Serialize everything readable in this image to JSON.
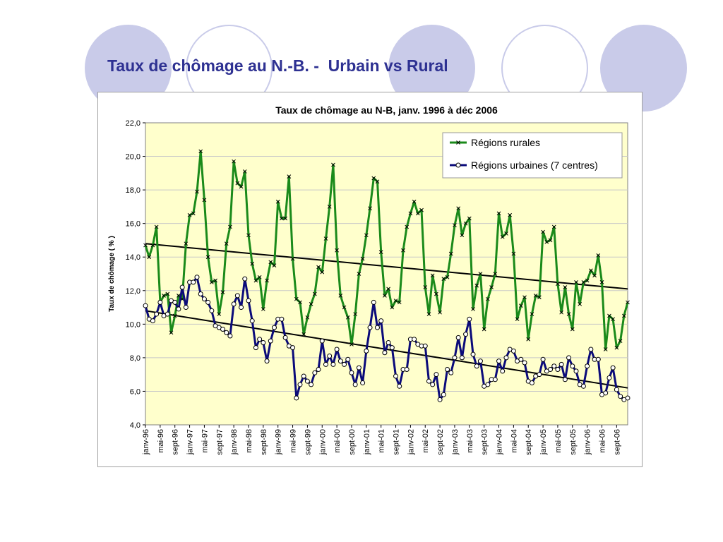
{
  "slide": {
    "title": "Taux de chômage au N.-B. -  Urbain vs Rural"
  },
  "theme": {
    "title_color": "#2e3192",
    "decor_color": "#c9cbe9",
    "plot_background": "#ffffcc",
    "rural_color": "#1a8a1a",
    "urban_color": "#0b0b7a",
    "trend_color": "#000000"
  },
  "chart_data": {
    "type": "line",
    "title": "Taux de chômage au N-B, janv. 1996 à déc 2006",
    "xlabel": "",
    "ylabel": "Taux de chômage ( % )",
    "ylim": [
      4.0,
      22.0
    ],
    "ytick_step": 2.0,
    "yticks": [
      "4,0",
      "6,0",
      "8,0",
      "10,0",
      "12,0",
      "14,0",
      "16,0",
      "18,0",
      "20,0",
      "22,0"
    ],
    "grid": true,
    "legend_position": "top-right",
    "x_tick_labels": [
      "janv-96",
      "mai-96",
      "sept-96",
      "janv-97",
      "mai-97",
      "sept-97",
      "janv-98",
      "mai-98",
      "sept-98",
      "janv-99",
      "mai-99",
      "sept-99",
      "janv-00",
      "mai-00",
      "sept-00",
      "janv-01",
      "mai-01",
      "sept-01",
      "janv-02",
      "mai-02",
      "sept-02",
      "janv-03",
      "mai-03",
      "sept-03",
      "janv-04",
      "mai-04",
      "sept-04",
      "janv-05",
      "mai-05",
      "sept-05",
      "janv-06",
      "mai-06",
      "sept-06"
    ],
    "x_start": "janv-96",
    "x_end": "déc-06",
    "series": [
      {
        "name": "Régions rurales",
        "color": "#1a8a1a",
        "marker": "x",
        "values": [
          14.7,
          14.0,
          14.7,
          15.8,
          11.3,
          11.7,
          11.8,
          9.5,
          10.5,
          11.7,
          11.5,
          14.8,
          16.5,
          16.6,
          17.9,
          20.3,
          17.4,
          14.0,
          12.5,
          12.6,
          10.6,
          11.9,
          14.8,
          15.8,
          19.7,
          18.4,
          18.2,
          19.1,
          15.3,
          13.6,
          12.6,
          12.8,
          10.9,
          12.6,
          13.7,
          13.5,
          17.3,
          16.3,
          16.3,
          18.8,
          13.9,
          11.5,
          11.3,
          9.4,
          10.4,
          11.2,
          11.8,
          13.4,
          13.1,
          15.1,
          17.0,
          19.5,
          14.4,
          11.7,
          11.0,
          10.4,
          8.8,
          10.6,
          13.0,
          13.9,
          15.3,
          16.9,
          18.7,
          18.5,
          14.3,
          11.7,
          12.1,
          11.0,
          11.4,
          11.3,
          14.4,
          15.8,
          16.6,
          17.3,
          16.6,
          16.8,
          12.2,
          10.6,
          12.9,
          11.8,
          10.7,
          12.7,
          12.8,
          14.2,
          15.9,
          16.9,
          15.3,
          16.0,
          16.3,
          10.9,
          12.3,
          13.0,
          9.7,
          11.5,
          12.2,
          13.0,
          16.6,
          15.2,
          15.4,
          16.5,
          14.2,
          10.3,
          11.1,
          11.6,
          9.1,
          10.6,
          11.7,
          11.6,
          15.5,
          14.9,
          15.0,
          15.8,
          12.4,
          10.7,
          12.2,
          10.6,
          9.7,
          12.5,
          11.2,
          12.5,
          12.6,
          13.2,
          12.9,
          14.1,
          12.5,
          8.5,
          10.5,
          10.3,
          8.6,
          9.0,
          10.5,
          11.3
        ]
      },
      {
        "name": "Régions urbaines (7 centres)",
        "color": "#0b0b7a",
        "marker": "o",
        "values": [
          11.1,
          10.3,
          10.2,
          10.6,
          11.3,
          10.5,
          10.6,
          11.4,
          11.3,
          10.9,
          12.2,
          11.0,
          12.5,
          12.5,
          12.8,
          11.8,
          11.5,
          11.3,
          10.8,
          9.9,
          9.8,
          9.7,
          9.5,
          9.3,
          11.2,
          11.7,
          11.0,
          12.7,
          11.4,
          10.2,
          8.6,
          9.1,
          8.9,
          7.8,
          9.0,
          9.8,
          10.3,
          10.3,
          9.2,
          8.7,
          8.6,
          5.6,
          6.4,
          6.9,
          6.6,
          6.4,
          7.1,
          7.3,
          9.0,
          7.6,
          8.1,
          7.6,
          8.5,
          7.8,
          7.6,
          7.9,
          7.1,
          6.4,
          7.4,
          6.5,
          8.4,
          9.8,
          11.3,
          9.8,
          10.2,
          8.3,
          8.9,
          8.6,
          6.9,
          6.3,
          7.3,
          7.3,
          9.1,
          9.1,
          8.8,
          8.7,
          8.7,
          6.6,
          6.4,
          7.0,
          5.5,
          5.8,
          7.3,
          7.1,
          8.0,
          9.2,
          8.0,
          9.4,
          10.3,
          8.2,
          7.5,
          7.8,
          6.3,
          6.4,
          6.7,
          6.7,
          7.8,
          7.2,
          8.0,
          8.5,
          8.4,
          7.8,
          7.9,
          7.7,
          6.6,
          6.5,
          6.9,
          7.0,
          7.9,
          7.2,
          7.3,
          7.5,
          7.3,
          7.6,
          6.7,
          8.0,
          7.5,
          7.2,
          6.4,
          6.3,
          7.5,
          8.5,
          7.9,
          7.9,
          5.8,
          5.9,
          6.8,
          7.4,
          6.1,
          5.7,
          5.5,
          5.6
        ]
      }
    ],
    "trendlines": [
      {
        "series": "Régions rurales",
        "start": 14.8,
        "end": 12.1
      },
      {
        "series": "Régions urbaines (7 centres)",
        "start": 10.8,
        "end": 6.2
      }
    ]
  }
}
